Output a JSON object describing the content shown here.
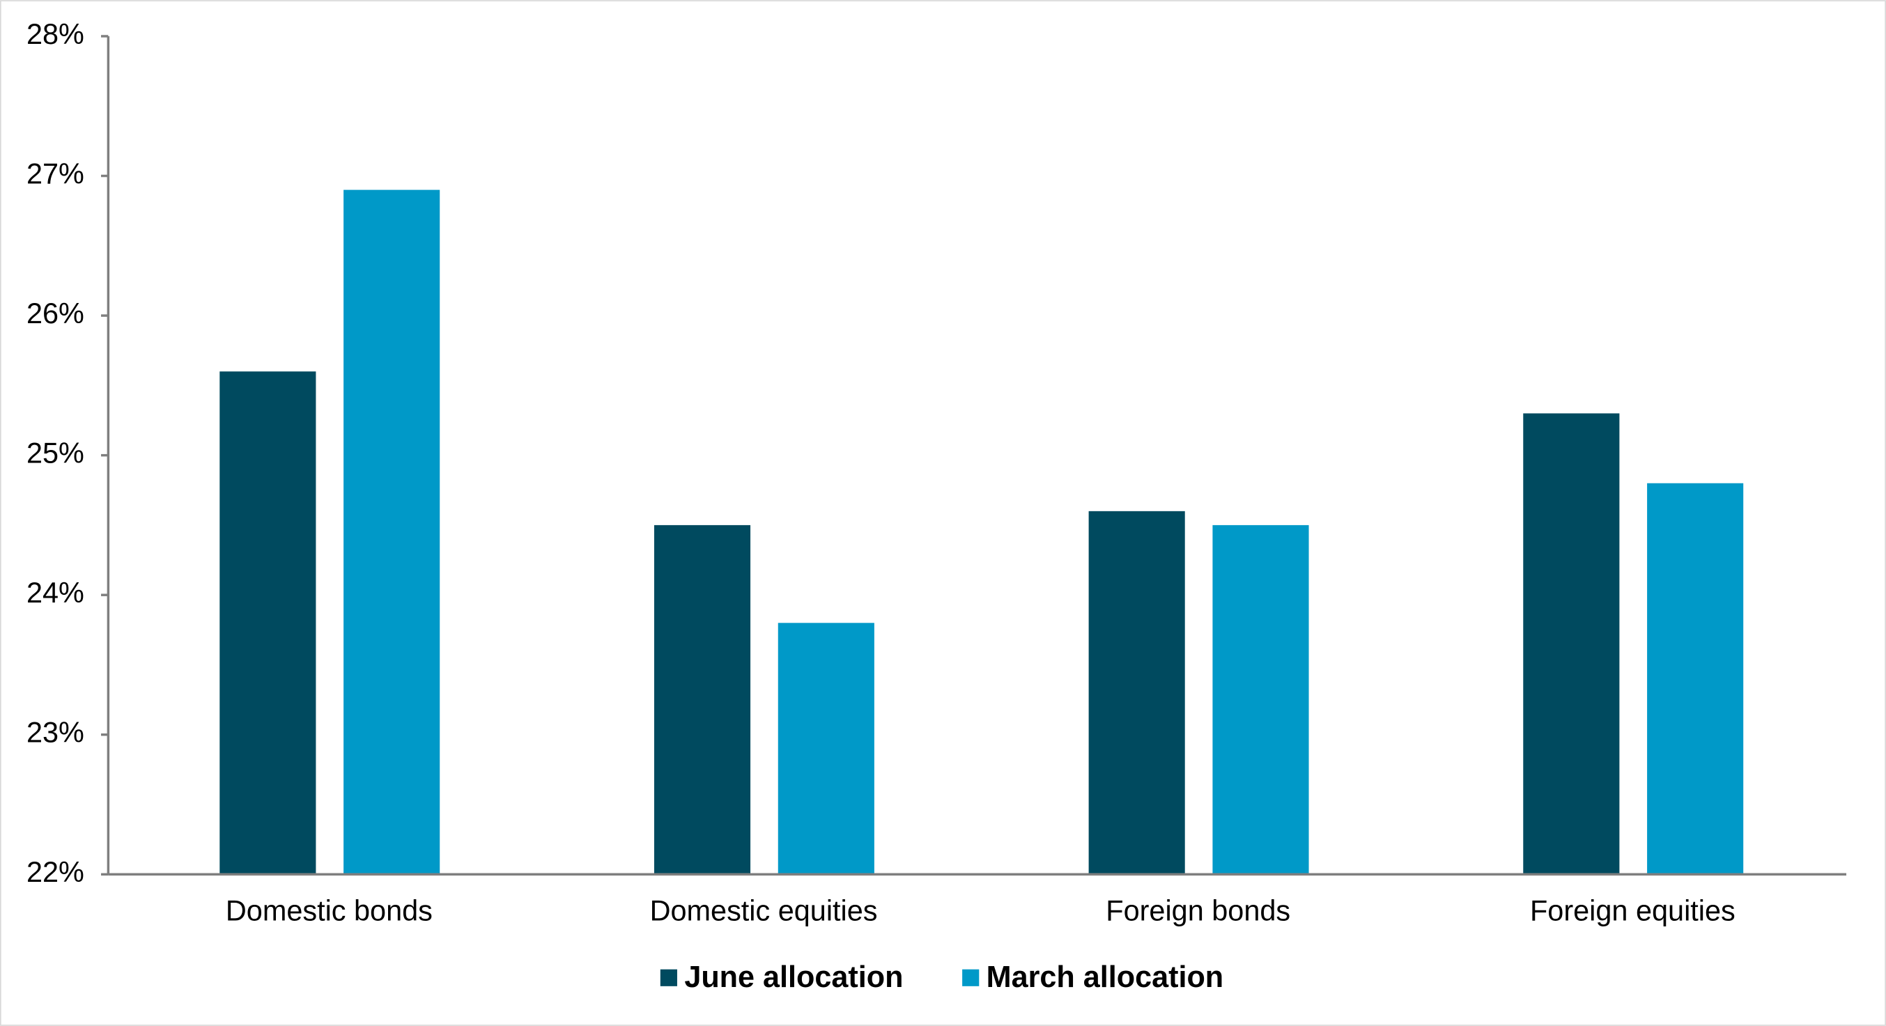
{
  "chart_data": {
    "type": "bar",
    "categories": [
      "Domestic bonds",
      "Domestic equities",
      "Foreign bonds",
      "Foreign equities"
    ],
    "series": [
      {
        "name": "June allocation",
        "color": "#004a5f",
        "values": [
          25.6,
          24.5,
          24.6,
          25.3
        ]
      },
      {
        "name": "March allocation",
        "color": "#0099c8",
        "values": [
          26.9,
          23.8,
          24.5,
          24.8
        ]
      }
    ],
    "ylim": [
      22,
      28
    ],
    "yticks": [
      {
        "value": 22,
        "label": "22%"
      },
      {
        "value": 23,
        "label": "23%"
      },
      {
        "value": 24,
        "label": "24%"
      },
      {
        "value": 25,
        "label": "25%"
      },
      {
        "value": 26,
        "label": "26%"
      },
      {
        "value": 27,
        "label": "27%"
      },
      {
        "value": 28,
        "label": "28%"
      }
    ],
    "grid": false,
    "legend": "bottom"
  }
}
